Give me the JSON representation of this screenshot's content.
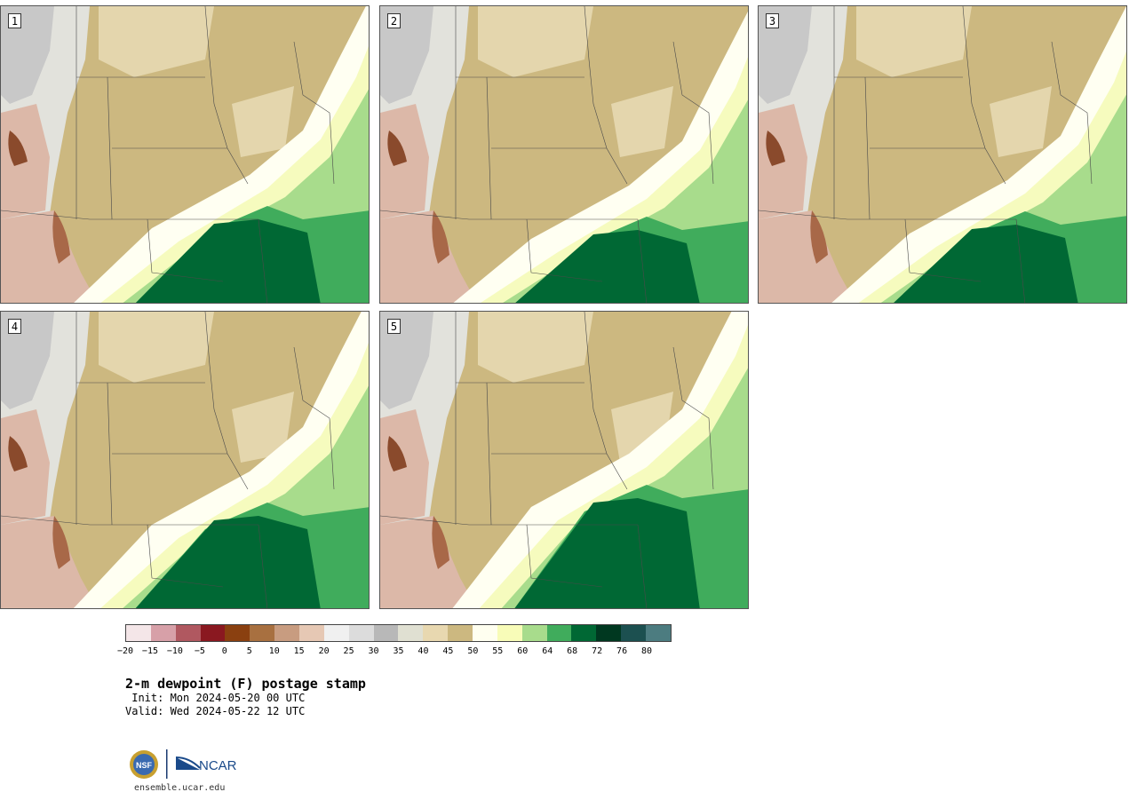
{
  "panels": [
    {
      "label": "1"
    },
    {
      "label": "2"
    },
    {
      "label": "3"
    },
    {
      "label": "4"
    },
    {
      "label": "5"
    }
  ],
  "colorbar": {
    "colors": [
      "#f4e6e8",
      "#d7a0a8",
      "#b05860",
      "#8a1820",
      "#8a4010",
      "#a87040",
      "#c89c80",
      "#e6c8b4",
      "#f0f0f0",
      "#dcdcdc",
      "#b8b8b8",
      "#e0e0d2",
      "#e8d8b0",
      "#ccb880",
      "#fffff0",
      "#f8fcb8",
      "#a8dc8c",
      "#40ac5c",
      "#006834",
      "#003820",
      "#1c5050",
      "#4c7c80"
    ],
    "tick_labels": [
      "−20",
      "−15",
      "−10",
      "−5",
      "0",
      "5",
      "10",
      "15",
      "20",
      "25",
      "30",
      "35",
      "40",
      "45",
      "50",
      "55",
      "60",
      "64",
      "68",
      "72",
      "76",
      "80"
    ]
  },
  "title": "2-m dewpoint (F) postage stamp",
  "init": " Init: Mon 2024-05-20 00 UTC",
  "valid": "Valid: Wed 2024-05-22 12 UTC",
  "footer": {
    "logos": [
      "NSF",
      "NCAR"
    ],
    "site": "ensemble.ucar.edu"
  }
}
